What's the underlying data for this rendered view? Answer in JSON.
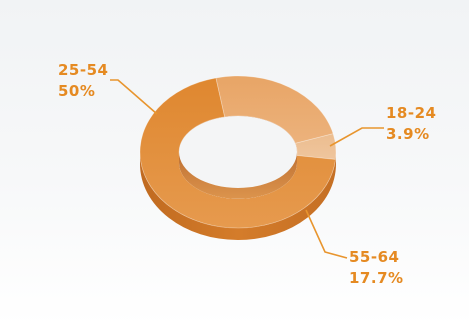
{
  "chart_data": {
    "type": "pie",
    "style": "3d-donut",
    "title": "",
    "slices": [
      {
        "label": "18-24",
        "value": 3.9,
        "value_text": "3.9%"
      },
      {
        "label": "25-54",
        "value": 50,
        "value_text": "50%"
      },
      {
        "label": "55-64",
        "value": 17.7,
        "value_text": "17.7%"
      }
    ],
    "colors": {
      "label_text": "#e58a22",
      "leader_line": "#e8952e",
      "slice_main": "#e08d35",
      "slice_light": "#e9aa6b",
      "slice_lighter": "#edbf92",
      "slice_side": "#c87024"
    }
  }
}
